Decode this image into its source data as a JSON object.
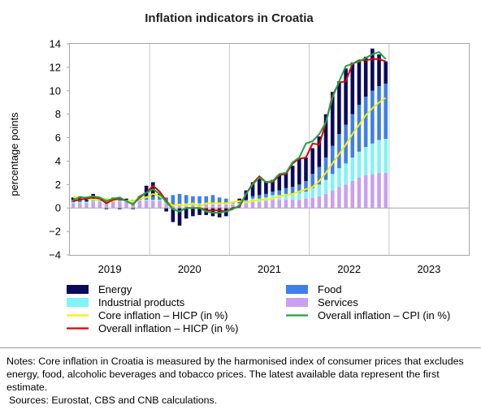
{
  "chart_data": {
    "type": "bar",
    "title": "Inflation indicators  in Croatia",
    "ylabel": "percentage points",
    "ylim": [
      -4,
      14
    ],
    "yticks": [
      -4,
      -2,
      0,
      2,
      4,
      6,
      8,
      10,
      12,
      14
    ],
    "ytick_labels": [
      "−4",
      "−2",
      "0",
      "2",
      "4",
      "6",
      "8",
      "10",
      "12",
      "14"
    ],
    "xticks": [
      "2019",
      "2020",
      "2021",
      "2022",
      "2023"
    ],
    "x_start": "2019-01",
    "x_end": "2023-12",
    "months": [
      "2019-01",
      "2019-02",
      "2019-03",
      "2019-04",
      "2019-05",
      "2019-06",
      "2019-07",
      "2019-08",
      "2019-09",
      "2019-10",
      "2019-11",
      "2019-12",
      "2020-01",
      "2020-02",
      "2020-03",
      "2020-04",
      "2020-05",
      "2020-06",
      "2020-07",
      "2020-08",
      "2020-09",
      "2020-10",
      "2020-11",
      "2020-12",
      "2021-01",
      "2021-02",
      "2021-03",
      "2021-04",
      "2021-05",
      "2021-06",
      "2021-07",
      "2021-08",
      "2021-09",
      "2021-10",
      "2021-11",
      "2021-12",
      "2022-01",
      "2022-02",
      "2022-03",
      "2022-04",
      "2022-05",
      "2022-06",
      "2022-07",
      "2022-08",
      "2022-09",
      "2022-10",
      "2022-11",
      "2022-12"
    ],
    "bar_series": [
      {
        "name": "Services",
        "color": "#c9a0f0",
        "values": [
          0.4,
          0.4,
          0.4,
          0.5,
          0.5,
          0.6,
          0.6,
          0.5,
          0.5,
          0.5,
          0.6,
          0.6,
          0.6,
          0.6,
          0.4,
          0.2,
          0.2,
          0.3,
          0.3,
          0.3,
          0.3,
          0.3,
          0.3,
          0.3,
          0.3,
          0.3,
          0.4,
          0.5,
          0.5,
          0.6,
          0.7,
          0.7,
          0.7,
          0.7,
          0.7,
          0.8,
          0.9,
          1.0,
          1.2,
          1.5,
          1.8,
          2.0,
          2.3,
          2.6,
          2.8,
          2.9,
          3.0,
          3.0
        ]
      },
      {
        "name": "Industrial products",
        "color": "#7ff5f3",
        "values": [
          0.1,
          0.1,
          0.1,
          0.1,
          0.1,
          0.1,
          0.1,
          0.1,
          0.1,
          0.1,
          0.1,
          0.1,
          0.1,
          0.1,
          0.1,
          0.1,
          0.1,
          0.1,
          0.1,
          0.1,
          0.1,
          0.1,
          0.1,
          0.1,
          0.1,
          0.1,
          0.2,
          0.3,
          0.3,
          0.3,
          0.4,
          0.4,
          0.5,
          0.5,
          0.6,
          0.6,
          0.8,
          1.0,
          1.2,
          1.4,
          1.6,
          1.8,
          2.0,
          2.2,
          2.4,
          2.6,
          2.8,
          2.9
        ]
      },
      {
        "name": "Food",
        "color": "#3f7fe8",
        "values": [
          0.2,
          0.2,
          0.1,
          0.2,
          0.1,
          0.1,
          0.2,
          0.2,
          0.1,
          0.1,
          0.2,
          0.3,
          0.3,
          0.2,
          0.4,
          0.8,
          0.9,
          0.7,
          0.6,
          0.6,
          0.6,
          0.7,
          0.5,
          0.4,
          0.1,
          0.2,
          0.1,
          0.2,
          0.3,
          0.3,
          0.3,
          0.4,
          0.5,
          0.6,
          0.7,
          0.9,
          1.2,
          1.5,
          1.9,
          2.4,
          2.9,
          3.3,
          3.7,
          4.0,
          4.3,
          4.5,
          4.6,
          4.7
        ]
      },
      {
        "name": "Energy",
        "color": "#0a0a5c",
        "values": [
          0.2,
          0.3,
          0.3,
          0.4,
          0.2,
          -0.1,
          0.0,
          -0.1,
          0.1,
          -0.1,
          0.1,
          0.9,
          1.2,
          0.3,
          -0.3,
          -1.2,
          -1.5,
          -0.9,
          -0.7,
          -0.6,
          -0.6,
          -0.7,
          -0.8,
          -0.7,
          0.0,
          0.2,
          0.8,
          1.2,
          1.4,
          1.1,
          1.0,
          1.3,
          1.3,
          1.8,
          2.2,
          2.0,
          2.2,
          2.6,
          3.7,
          4.6,
          4.5,
          4.8,
          4.4,
          3.8,
          3.4,
          3.6,
          2.7,
          1.9
        ]
      }
    ],
    "line_series": [
      {
        "name": "Core inflation – HICP (in %)",
        "color": "#f5f000",
        "values": [
          0.9,
          0.9,
          0.8,
          0.7,
          0.7,
          0.8,
          0.6,
          0.8,
          0.6,
          0.6,
          0.8,
          0.9,
          1.2,
          1.0,
          0.6,
          0.2,
          0.3,
          0.2,
          0.4,
          0.1,
          0.4,
          0.4,
          0.4,
          0.4,
          0.5,
          0.6,
          0.5,
          0.6,
          0.7,
          0.7,
          0.8,
          1.0,
          1.1,
          1.2,
          1.4,
          1.6,
          1.8,
          2.3,
          3.0,
          3.8,
          4.6,
          5.4,
          6.3,
          7.1,
          7.9,
          8.5,
          9.0,
          9.4
        ]
      },
      {
        "name": "Overall inflation – HICP (in %)",
        "color": "#e00000",
        "values": [
          0.6,
          0.7,
          0.8,
          0.9,
          0.8,
          0.4,
          0.7,
          0.8,
          0.6,
          0.3,
          0.9,
          1.3,
          1.9,
          1.4,
          0.6,
          -0.1,
          -0.3,
          0.0,
          0.0,
          0.0,
          -0.2,
          -0.2,
          -0.2,
          -0.3,
          0.0,
          0.1,
          1.2,
          2.1,
          2.7,
          2.2,
          2.2,
          2.8,
          2.9,
          3.8,
          4.2,
          4.3,
          5.5,
          5.4,
          7.3,
          9.6,
          10.7,
          10.8,
          12.3,
          12.6,
          12.6,
          12.7,
          12.7,
          12.5
        ]
      },
      {
        "name": "Overall inflation – CPI (in %)",
        "color": "#1aa640",
        "values": [
          0.7,
          0.9,
          0.9,
          1.0,
          0.9,
          0.6,
          0.8,
          0.9,
          0.6,
          0.3,
          1.0,
          1.3,
          1.6,
          1.2,
          0.5,
          -0.1,
          -0.3,
          0.0,
          0.0,
          0.0,
          -0.3,
          -0.4,
          -0.4,
          -0.3,
          -0.1,
          0.2,
          1.2,
          2.0,
          2.6,
          2.2,
          2.3,
          2.9,
          3.0,
          3.9,
          4.3,
          5.5,
          5.7,
          6.3,
          7.3,
          9.4,
          10.8,
          12.1,
          12.3,
          12.5,
          12.8,
          13.1,
          13.3,
          12.7
        ]
      }
    ],
    "legend": [
      {
        "label": "Energy",
        "kind": "box",
        "color": "#0a0a5c"
      },
      {
        "label": "Food",
        "kind": "box",
        "color": "#3f7fe8"
      },
      {
        "label": "Industrial products",
        "kind": "box",
        "color": "#7ff5f3"
      },
      {
        "label": "Services",
        "kind": "box",
        "color": "#c9a0f0"
      },
      {
        "label": "Core inflation – HICP (in %)",
        "kind": "line",
        "color": "#f5f000"
      },
      {
        "label": "Overall inflation – CPI (in %)",
        "kind": "line",
        "color": "#1aa640"
      },
      {
        "label": "Overall inflation – HICP (in %)",
        "kind": "line",
        "color": "#e00000"
      }
    ],
    "legend_placement": "bottom",
    "grid": false
  },
  "notes": {
    "text": "Notes: Core inflation in Croatia is measured by the harmonised index of consumer prices that excludes energy, food, alcoholic beverages and tobacco prices. The latest available data represent the first estimate.",
    "sources": "Sources: Eurostat, CBS and CNB calculations."
  }
}
